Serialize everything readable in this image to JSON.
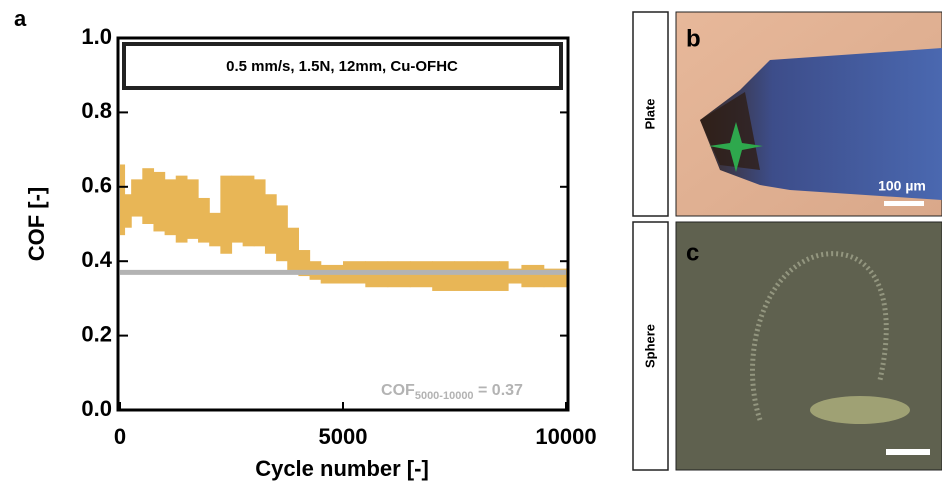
{
  "chart_data": {
    "type": "band",
    "panel_label": "a",
    "annotation_box": "0.5 mm/s, 1.5N, 12mm, Cu-OFHC",
    "xlabel": "Cycle number [-]",
    "ylabel": "COF [-]",
    "xlim": [
      0,
      10000
    ],
    "ylim": [
      0,
      1
    ],
    "xticks": [
      0,
      5000,
      10000
    ],
    "yticks": [
      {
        "value": 0,
        "label": "0.0"
      },
      0.2,
      0.4,
      0.6,
      0.8,
      {
        "value": 1,
        "label": "1.0"
      }
    ],
    "series": [
      {
        "color": "#e8b656",
        "x": [
          0,
          100,
          250,
          500,
          750,
          1000,
          1250,
          1500,
          1750,
          2000,
          2250,
          2500,
          2750,
          3000,
          3250,
          3500,
          3750,
          4000,
          4250,
          4500,
          5000,
          5500,
          6000,
          6500,
          7000,
          7500,
          8000,
          8500,
          8700,
          9000,
          9500,
          10000
        ],
        "lower": [
          0.47,
          0.49,
          0.52,
          0.5,
          0.48,
          0.47,
          0.45,
          0.46,
          0.45,
          0.44,
          0.42,
          0.45,
          0.44,
          0.44,
          0.42,
          0.4,
          0.37,
          0.36,
          0.35,
          0.34,
          0.34,
          0.33,
          0.33,
          0.33,
          0.32,
          0.32,
          0.32,
          0.32,
          0.34,
          0.33,
          0.33,
          0.35
        ],
        "upper": [
          0.66,
          0.58,
          0.62,
          0.65,
          0.64,
          0.62,
          0.63,
          0.62,
          0.57,
          0.53,
          0.63,
          0.63,
          0.63,
          0.62,
          0.58,
          0.55,
          0.49,
          0.43,
          0.4,
          0.39,
          0.4,
          0.4,
          0.4,
          0.4,
          0.4,
          0.4,
          0.4,
          0.4,
          0.38,
          0.39,
          0.38,
          0.38
        ]
      }
    ],
    "mean_line": {
      "value": 0.37,
      "color": "#b3b3b3"
    },
    "mean_label": {
      "text": "COF",
      "subscript": "5000-10000",
      "suffix": " = 0.37"
    }
  },
  "images": [
    {
      "panel_label": "b",
      "side_label": "Plate",
      "scale_label": "100 µm"
    },
    {
      "panel_label": "c",
      "side_label": "Sphere"
    }
  ]
}
